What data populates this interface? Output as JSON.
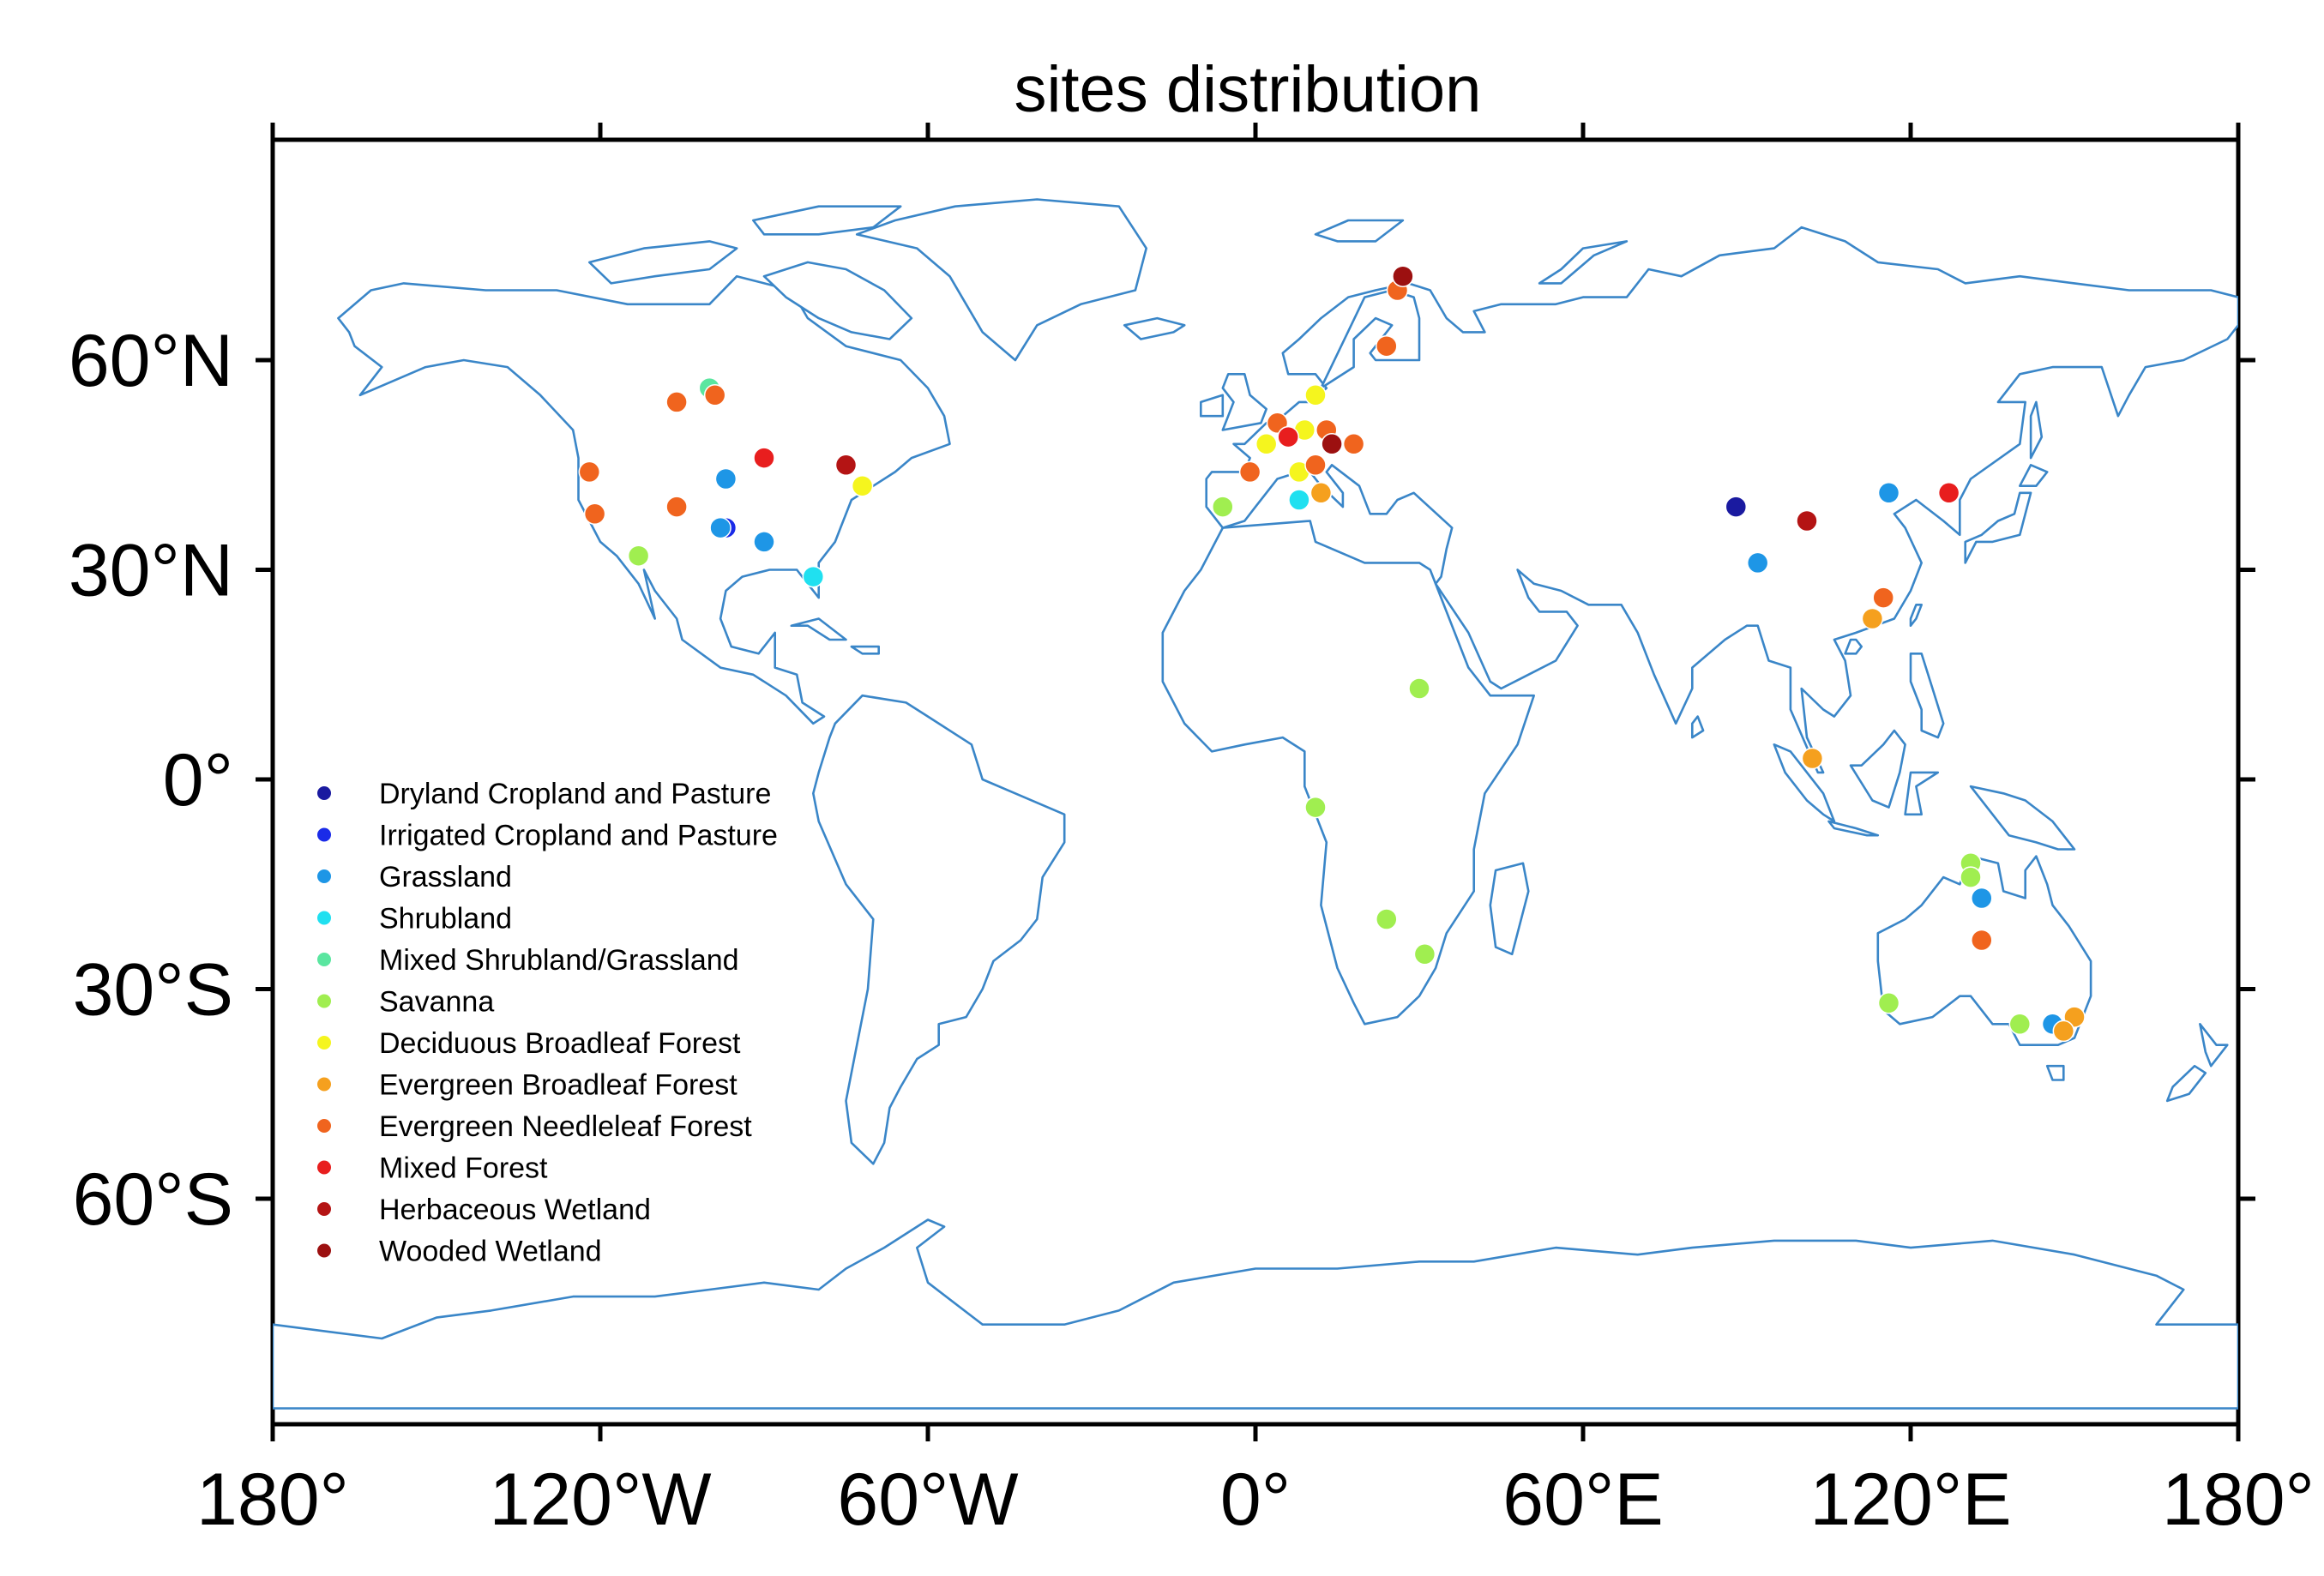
{
  "title": "sites distribution",
  "x_ticks": [
    "180°",
    "120°W",
    "60°W",
    "0°",
    "60°E",
    "120°E",
    "180°"
  ],
  "y_ticks": [
    "60°N",
    "30°N",
    "0°",
    "30°S",
    "60°S"
  ],
  "coastline_color": "#3a86c8",
  "chart_data": {
    "type": "scatter",
    "title": "sites distribution",
    "x_range": [
      -180,
      180
    ],
    "y_range": [
      -90,
      90
    ],
    "legend_placement": "lower-left",
    "categories": [
      {
        "name": "Dryland Cropland and Pasture",
        "color": "#1a1aa0"
      },
      {
        "name": "Irrigated Cropland and Pasture",
        "color": "#1a2be8"
      },
      {
        "name": "Grassland",
        "color": "#1e96e6"
      },
      {
        "name": "Shrubland",
        "color": "#20e0f0"
      },
      {
        "name": "Mixed Shrubland/Grassland",
        "color": "#5ae6a0"
      },
      {
        "name": "Savanna",
        "color": "#a0ee50"
      },
      {
        "name": "Deciduous Broadleaf Forest",
        "color": "#f5f51e"
      },
      {
        "name": "Evergreen Broadleaf Forest",
        "color": "#f5a01e"
      },
      {
        "name": "Evergreen Needleleaf Forest",
        "color": "#f0641e"
      },
      {
        "name": "Mixed Forest",
        "color": "#e81e1e"
      },
      {
        "name": "Herbaceous Wetland",
        "color": "#b41414"
      },
      {
        "name": "Wooded Wetland",
        "color": "#9c1010"
      }
    ],
    "points": [
      {
        "lon": -97,
        "lat": 36,
        "cat": 1
      },
      {
        "lon": 88,
        "lat": 39,
        "cat": 0
      },
      {
        "lon": -98,
        "lat": 36,
        "cat": 2
      },
      {
        "lon": -97,
        "lat": 43,
        "cat": 2
      },
      {
        "lon": -90,
        "lat": 34,
        "cat": 2
      },
      {
        "lon": 92,
        "lat": 31,
        "cat": 2
      },
      {
        "lon": 116,
        "lat": 41,
        "cat": 2
      },
      {
        "lon": 133,
        "lat": -17,
        "cat": 2
      },
      {
        "lon": 146,
        "lat": -35,
        "cat": 2
      },
      {
        "lon": -81,
        "lat": 29,
        "cat": 3
      },
      {
        "lon": 8,
        "lat": 40,
        "cat": 3
      },
      {
        "lon": -100,
        "lat": 56,
        "cat": 4
      },
      {
        "lon": -113,
        "lat": 32,
        "cat": 5
      },
      {
        "lon": -6,
        "lat": 39,
        "cat": 5
      },
      {
        "lon": 30,
        "lat": 13,
        "cat": 5
      },
      {
        "lon": 11,
        "lat": -4,
        "cat": 5
      },
      {
        "lon": 24,
        "lat": -20,
        "cat": 5
      },
      {
        "lon": 31,
        "lat": -25,
        "cat": 5
      },
      {
        "lon": 131,
        "lat": -12,
        "cat": 5
      },
      {
        "lon": 131,
        "lat": -14,
        "cat": 5
      },
      {
        "lon": 116,
        "lat": -32,
        "cat": 5
      },
      {
        "lon": 140,
        "lat": -35,
        "cat": 5
      },
      {
        "lon": -72,
        "lat": 42,
        "cat": 6
      },
      {
        "lon": 11,
        "lat": 55,
        "cat": 6
      },
      {
        "lon": 2,
        "lat": 48,
        "cat": 6
      },
      {
        "lon": 9,
        "lat": 50,
        "cat": 6
      },
      {
        "lon": 8,
        "lat": 44,
        "cat": 6
      },
      {
        "lon": 12,
        "lat": 41,
        "cat": 7
      },
      {
        "lon": 113,
        "lat": 23,
        "cat": 7
      },
      {
        "lon": 102,
        "lat": 3,
        "cat": 7
      },
      {
        "lon": 150,
        "lat": -34,
        "cat": 7
      },
      {
        "lon": 148,
        "lat": -36,
        "cat": 7
      },
      {
        "lon": -122,
        "lat": 44,
        "cat": 8
      },
      {
        "lon": -121,
        "lat": 38,
        "cat": 8
      },
      {
        "lon": -106,
        "lat": 54,
        "cat": 8
      },
      {
        "lon": -99,
        "lat": 55,
        "cat": 8
      },
      {
        "lon": -106,
        "lat": 39,
        "cat": 8
      },
      {
        "lon": 4,
        "lat": 51,
        "cat": 8
      },
      {
        "lon": 13,
        "lat": 50,
        "cat": 8
      },
      {
        "lon": 18,
        "lat": 48,
        "cat": 8
      },
      {
        "lon": -1,
        "lat": 44,
        "cat": 8
      },
      {
        "lon": 11,
        "lat": 45,
        "cat": 8
      },
      {
        "lon": 24,
        "lat": 62,
        "cat": 8
      },
      {
        "lon": 26,
        "lat": 70,
        "cat": 8
      },
      {
        "lon": 115,
        "lat": 26,
        "cat": 8
      },
      {
        "lon": 133,
        "lat": -23,
        "cat": 8
      },
      {
        "lon": -90,
        "lat": 46,
        "cat": 9
      },
      {
        "lon": 127,
        "lat": 41,
        "cat": 9
      },
      {
        "lon": 6,
        "lat": 49,
        "cat": 9
      },
      {
        "lon": -75,
        "lat": 45,
        "cat": 10
      },
      {
        "lon": 101,
        "lat": 37,
        "cat": 10
      },
      {
        "lon": 14,
        "lat": 48,
        "cat": 11
      },
      {
        "lon": 27,
        "lat": 72,
        "cat": 11
      }
    ]
  }
}
